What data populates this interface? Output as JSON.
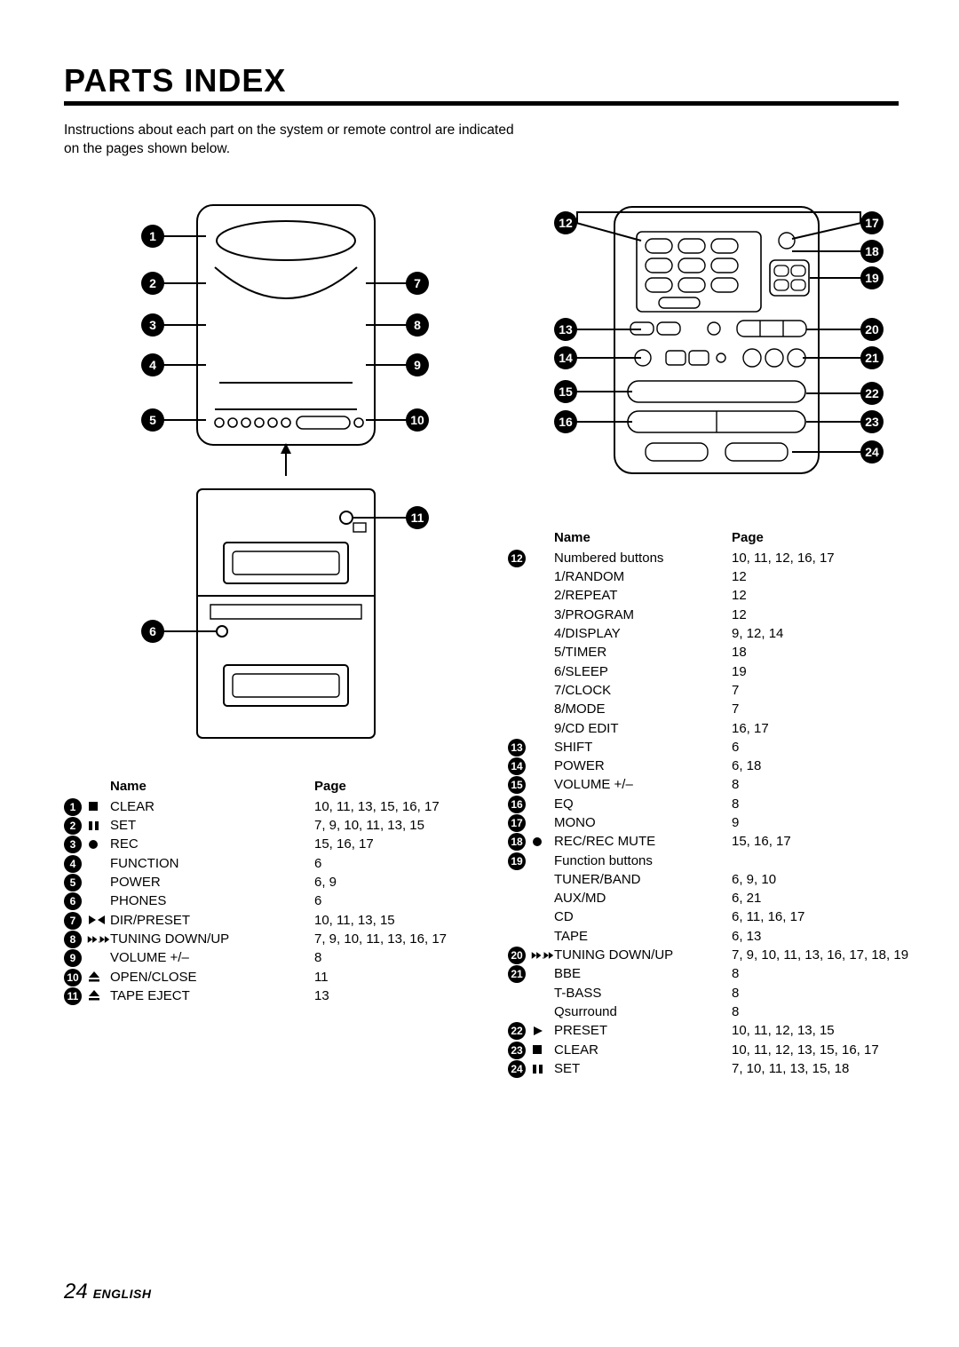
{
  "title": "PARTS INDEX",
  "intro": "Instructions about each part on the system or remote control are indicated on the pages shown below.",
  "footer": {
    "page": "24",
    "lang": "ENGLISH"
  },
  "left_header": {
    "name": "Name",
    "page": "Page"
  },
  "left_items": [
    {
      "num": "1",
      "sym": "stop",
      "name": "CLEAR",
      "page": "10, 11, 13, 15, 16, 17"
    },
    {
      "num": "2",
      "sym": "pause",
      "name": "SET",
      "page": "7, 9, 10, 11, 13, 15"
    },
    {
      "num": "3",
      "sym": "rec",
      "name": "REC",
      "page": "15, 16, 17"
    },
    {
      "num": "4",
      "sym": "",
      "name": "FUNCTION",
      "page": "6"
    },
    {
      "num": "5",
      "sym": "",
      "name": "POWER",
      "page": "6, 9"
    },
    {
      "num": "6",
      "sym": "",
      "name": "PHONES",
      "page": "6"
    },
    {
      "num": "7",
      "sym": "dir",
      "name": "DIR/PRESET",
      "page": "10, 11, 13, 15"
    },
    {
      "num": "8",
      "sym": "rwff",
      "name": "TUNING DOWN/UP",
      "page": "7, 9, 10, 11, 13, 16, 17"
    },
    {
      "num": "9",
      "sym": "",
      "name": "VOLUME +/–",
      "page": "8"
    },
    {
      "num": "10",
      "sym": "eject",
      "name": "OPEN/CLOSE",
      "page": "11"
    },
    {
      "num": "11",
      "sym": "eject",
      "name": "TAPE EJECT",
      "page": "13"
    }
  ],
  "right_header": {
    "name": "Name",
    "page": "Page"
  },
  "right_items": [
    {
      "num": "12",
      "sym": "",
      "name": "Numbered buttons",
      "page": "10, 11, 12, 16, 17"
    },
    {
      "indent": true,
      "name": "1/RANDOM",
      "page": "12"
    },
    {
      "indent": true,
      "name": "2/REPEAT",
      "page": "12"
    },
    {
      "indent": true,
      "name": "3/PROGRAM",
      "page": "12"
    },
    {
      "indent": true,
      "name": "4/DISPLAY",
      "page": "9, 12, 14"
    },
    {
      "indent": true,
      "name": "5/TIMER",
      "page": "18"
    },
    {
      "indent": true,
      "name": "6/SLEEP",
      "page": "19"
    },
    {
      "indent": true,
      "name": "7/CLOCK",
      "page": "7"
    },
    {
      "indent": true,
      "name": "8/MODE",
      "page": "7"
    },
    {
      "indent": true,
      "name": "9/CD EDIT",
      "page": "16, 17"
    },
    {
      "num": "13",
      "sym": "",
      "name": "SHIFT",
      "page": "6"
    },
    {
      "num": "14",
      "sym": "",
      "name": "POWER",
      "page": "6, 18"
    },
    {
      "num": "15",
      "sym": "",
      "name": "VOLUME +/–",
      "page": "8"
    },
    {
      "num": "16",
      "sym": "",
      "name": "EQ",
      "page": "8"
    },
    {
      "num": "17",
      "sym": "",
      "name": "MONO",
      "page": "9"
    },
    {
      "num": "18",
      "sym": "rec",
      "name": "REC/REC MUTE",
      "page": "15, 16, 17"
    },
    {
      "num": "19",
      "sym": "",
      "name": "Function buttons",
      "page": ""
    },
    {
      "indent": true,
      "name": "TUNER/BAND",
      "page": "6, 9, 10"
    },
    {
      "indent": true,
      "name": "AUX/MD",
      "page": "6, 21"
    },
    {
      "indent": true,
      "name": "CD",
      "page": "6, 11, 16, 17"
    },
    {
      "indent": true,
      "name": "TAPE",
      "page": "6, 13"
    },
    {
      "num": "20",
      "sym": "rwff",
      "name": "TUNING DOWN/UP",
      "page": "7, 9, 10, 11, 13, 16, 17, 18, 19"
    },
    {
      "num": "21",
      "sym": "",
      "name": "BBE",
      "page": "8"
    },
    {
      "indent": true,
      "name": "T-BASS",
      "page": "8"
    },
    {
      "indent": true,
      "name": "Qsurround",
      "page": "8"
    },
    {
      "num": "22",
      "sym": "play",
      "name": "PRESET",
      "page": "10, 11, 12, 13, 15"
    },
    {
      "num": "23",
      "sym": "stop",
      "name": "CLEAR",
      "page": "10, 11, 12, 13, 15, 16, 17"
    },
    {
      "num": "24",
      "sym": "pause",
      "name": "SET",
      "page": "7, 10, 11, 13, 15, 18"
    }
  ],
  "left_callouts": [
    "1",
    "2",
    "3",
    "4",
    "5",
    "6",
    "7",
    "8",
    "9",
    "10",
    "11"
  ],
  "right_callouts_left": [
    "12",
    "13",
    "14",
    "15",
    "16"
  ],
  "right_callouts_right": [
    "17",
    "18",
    "19",
    "20",
    "21",
    "22",
    "23",
    "24"
  ]
}
